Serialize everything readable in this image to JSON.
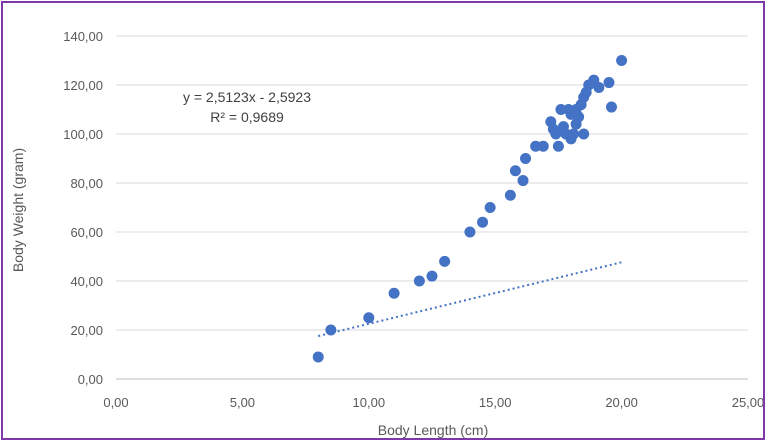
{
  "chart_data": {
    "type": "scatter",
    "title": "",
    "xlabel": "Body Length (cm)",
    "ylabel": "Body Weight (gram)",
    "xlim": [
      0,
      25
    ],
    "ylim": [
      0,
      140
    ],
    "x_ticks": [
      "0,00",
      "5,00",
      "10,00",
      "15,00",
      "20,00",
      "25,00"
    ],
    "y_ticks": [
      "0,00",
      "20,00",
      "40,00",
      "60,00",
      "80,00",
      "100,00",
      "120,00",
      "140,00"
    ],
    "grid": "horizontal",
    "marker_color": "#4472c4",
    "trendline": {
      "type": "linear",
      "style": "dotted",
      "slope": 2.5123,
      "intercept": -2.5923,
      "x_range": [
        8,
        20
      ],
      "equation_label": "y = 2,5123x - 2,5923",
      "r2_label": "R² = 0,9689"
    },
    "points": [
      {
        "x": 8.0,
        "y": 9
      },
      {
        "x": 8.5,
        "y": 20
      },
      {
        "x": 10.0,
        "y": 25
      },
      {
        "x": 11.0,
        "y": 35
      },
      {
        "x": 12.0,
        "y": 40
      },
      {
        "x": 12.5,
        "y": 42
      },
      {
        "x": 13.0,
        "y": 48
      },
      {
        "x": 14.0,
        "y": 60
      },
      {
        "x": 14.5,
        "y": 64
      },
      {
        "x": 14.8,
        "y": 70
      },
      {
        "x": 15.6,
        "y": 75
      },
      {
        "x": 15.8,
        "y": 85
      },
      {
        "x": 16.1,
        "y": 81
      },
      {
        "x": 16.2,
        "y": 90
      },
      {
        "x": 16.6,
        "y": 95
      },
      {
        "x": 16.9,
        "y": 95
      },
      {
        "x": 17.2,
        "y": 105
      },
      {
        "x": 17.3,
        "y": 102
      },
      {
        "x": 17.4,
        "y": 100
      },
      {
        "x": 17.5,
        "y": 95
      },
      {
        "x": 17.6,
        "y": 110
      },
      {
        "x": 17.7,
        "y": 103
      },
      {
        "x": 17.8,
        "y": 100
      },
      {
        "x": 17.9,
        "y": 110
      },
      {
        "x": 18.0,
        "y": 98
      },
      {
        "x": 18.0,
        "y": 108
      },
      {
        "x": 18.1,
        "y": 100
      },
      {
        "x": 18.2,
        "y": 110
      },
      {
        "x": 18.2,
        "y": 104
      },
      {
        "x": 18.3,
        "y": 107
      },
      {
        "x": 18.4,
        "y": 112
      },
      {
        "x": 18.5,
        "y": 115
      },
      {
        "x": 18.5,
        "y": 100
      },
      {
        "x": 18.6,
        "y": 117
      },
      {
        "x": 18.7,
        "y": 120
      },
      {
        "x": 18.9,
        "y": 122
      },
      {
        "x": 19.1,
        "y": 119
      },
      {
        "x": 19.5,
        "y": 121
      },
      {
        "x": 19.6,
        "y": 111
      },
      {
        "x": 20.0,
        "y": 130
      }
    ]
  }
}
